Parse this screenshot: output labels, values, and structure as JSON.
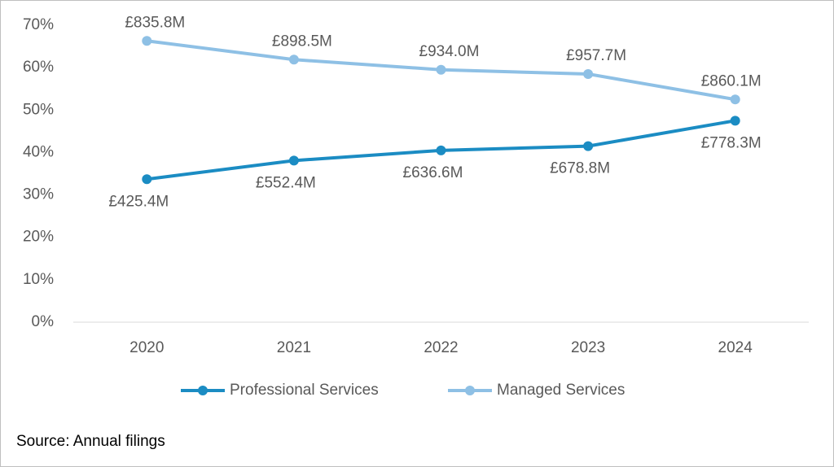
{
  "chart_data": {
    "type": "line",
    "categories": [
      "2020",
      "2021",
      "2022",
      "2023",
      "2024"
    ],
    "series": [
      {
        "name": "Professional Services",
        "color": "#1b8cc3",
        "values": [
          33.7,
          38.1,
          40.5,
          41.5,
          47.5
        ],
        "amount_labels": [
          "£425.4M",
          "£552.4M",
          "£636.6M",
          "£678.8M",
          "£778.3M"
        ]
      },
      {
        "name": "Managed Services",
        "color": "#8ec0e5",
        "values": [
          66.3,
          61.9,
          59.5,
          58.5,
          52.5
        ],
        "amount_labels": [
          "£835.8M",
          "£898.5M",
          "£934.0M",
          "£957.7M",
          "£860.1M"
        ]
      }
    ],
    "ylim": [
      0,
      70
    ],
    "yticks": [
      {
        "value": 0,
        "label": "0%"
      },
      {
        "value": 10,
        "label": "10%"
      },
      {
        "value": 20,
        "label": "20%"
      },
      {
        "value": 30,
        "label": "30%"
      },
      {
        "value": 40,
        "label": "40%"
      },
      {
        "value": 50,
        "label": "50%"
      },
      {
        "value": 60,
        "label": "60%"
      },
      {
        "value": 70,
        "label": "70%"
      }
    ],
    "grid": false,
    "legend": "bottom",
    "source": "Source: Annual filings"
  }
}
